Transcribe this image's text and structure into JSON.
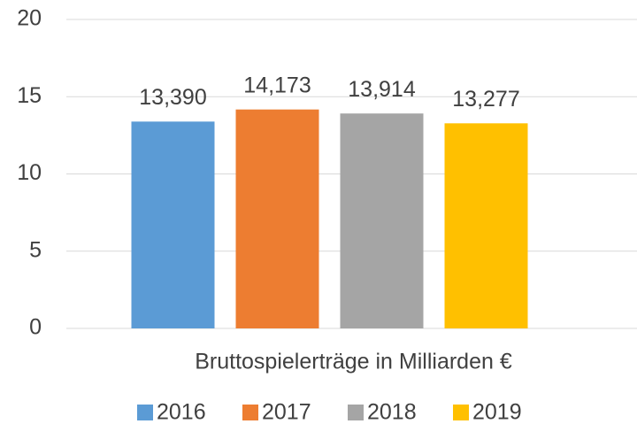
{
  "chart_data": {
    "type": "bar",
    "categories": [
      "Bruttospielerträge in Milliarden €"
    ],
    "series": [
      {
        "name": "2016",
        "color": "#5b9bd5",
        "values": [
          13.39
        ],
        "value_labels": [
          "13,390"
        ]
      },
      {
        "name": "2017",
        "color": "#ed7d31",
        "values": [
          14.173
        ],
        "value_labels": [
          "14,173"
        ]
      },
      {
        "name": "2018",
        "color": "#a5a5a5",
        "values": [
          13.914
        ],
        "value_labels": [
          "13,914"
        ]
      },
      {
        "name": "2019",
        "color": "#ffc000",
        "values": [
          13.277
        ],
        "value_labels": [
          "13,277"
        ]
      }
    ],
    "ylim": [
      0,
      20
    ],
    "yticks": [
      0,
      5,
      10,
      15,
      20
    ],
    "grid": true,
    "legend": "bottom"
  }
}
